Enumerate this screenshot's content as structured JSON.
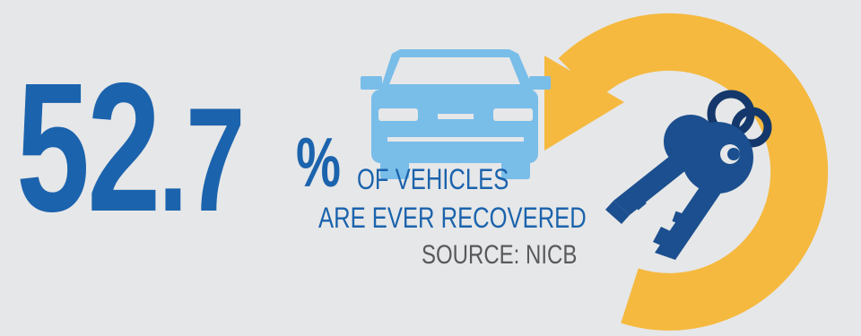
{
  "stat": {
    "integer": "52",
    "decimal": ".7",
    "percent": "%"
  },
  "caption": {
    "line1": "OF VEHICLES",
    "line2": "ARE EVER RECOVERED",
    "source": "SOURCE: NICB"
  },
  "icons": {
    "car": "car-icon",
    "keys": "keys-icon",
    "arrow": "circular-arrow-icon"
  },
  "colors": {
    "background": "#e6e7e8",
    "blue": "#1b63ad",
    "light_blue": "#79bde9",
    "yellow": "#f5b93f",
    "gray": "#58595b"
  }
}
